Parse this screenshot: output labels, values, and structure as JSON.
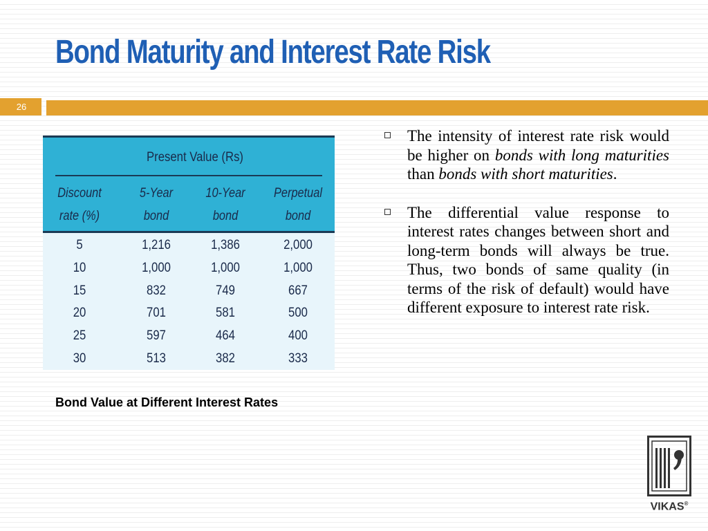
{
  "slide": {
    "title": "Bond Maturity and Interest Rate Risk",
    "number": "26"
  },
  "table": {
    "group_header": "Present Value (Rs)",
    "columns": [
      [
        "Discount",
        "rate (%)"
      ],
      [
        "5-Year",
        "bond"
      ],
      [
        "10-Year",
        "bond"
      ],
      [
        "Perpetual",
        "bond"
      ]
    ],
    "rows": [
      [
        "5",
        "1,216",
        "1,386",
        "2,000"
      ],
      [
        "10",
        "1,000",
        "1,000",
        "1,000"
      ],
      [
        "15",
        "832",
        "749",
        "667"
      ],
      [
        "20",
        "701",
        "581",
        "500"
      ],
      [
        "25",
        "597",
        "464",
        "400"
      ],
      [
        "30",
        "513",
        "382",
        "333"
      ]
    ]
  },
  "caption": "Bond Value at Different Interest Rates",
  "bullets": [
    {
      "segments": [
        {
          "text": "The intensity of interest rate risk would be higher on ",
          "italic": false
        },
        {
          "text": "bonds with long maturities",
          "italic": true
        },
        {
          "text": " than ",
          "italic": false
        },
        {
          "text": "bonds with short maturities",
          "italic": true
        },
        {
          "text": ".",
          "italic": false
        }
      ]
    },
    {
      "segments": [
        {
          "text": "The differential value response to interest rates changes between short and long-term bonds will always be true. Thus, two bonds of same quality (in terms of the risk of default) would have different exposure to interest rate risk.",
          "italic": false
        }
      ]
    }
  ],
  "logo": {
    "name": "VIKAS",
    "mark": "®"
  },
  "colors": {
    "title": "#1f5fb4",
    "accent": "#e3a12f",
    "table_header": "#2fb1d5",
    "table_body": "#e8f5fb"
  }
}
